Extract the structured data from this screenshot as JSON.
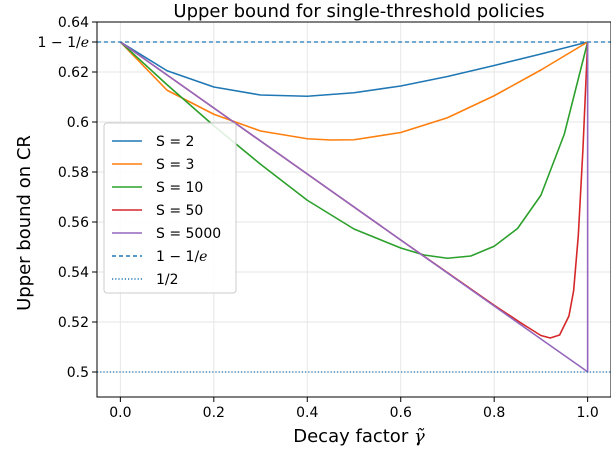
{
  "chart_data": {
    "type": "line",
    "title": "Upper bound for single-threshold policies",
    "xlabel": "Decay factor",
    "xlabel_symbol": "γ̃",
    "ylabel": "Upper bound on CR",
    "xlim": [
      -0.05,
      1.05
    ],
    "ylim": [
      0.49,
      0.64
    ],
    "x_ticks": [
      0.0,
      0.2,
      0.4,
      0.6,
      0.8,
      1.0
    ],
    "x_tick_labels": [
      "0.0",
      "0.2",
      "0.4",
      "0.6",
      "0.8",
      "1.0"
    ],
    "y_ticks": [
      0.5,
      0.52,
      0.54,
      0.56,
      0.58,
      0.6,
      0.62,
      0.632,
      0.64
    ],
    "y_tick_labels": [
      "0.5",
      "0.52",
      "0.54",
      "0.56",
      "0.58",
      "0.6",
      "0.62",
      "1 − 1/e",
      "0.64"
    ],
    "grid": true,
    "legend_location": "center-left",
    "series": [
      {
        "name": "S = 2",
        "color": "#1f77b4",
        "style": "solid",
        "x": [
          0.0,
          0.1,
          0.2,
          0.3,
          0.4,
          0.5,
          0.6,
          0.7,
          0.8,
          0.9,
          1.0
        ],
        "y": [
          0.632,
          0.6205,
          0.614,
          0.6108,
          0.6103,
          0.6117,
          0.6144,
          0.6182,
          0.6226,
          0.6272,
          0.632
        ]
      },
      {
        "name": "S = 3",
        "color": "#ff7f0e",
        "style": "solid",
        "x": [
          0.0,
          0.1,
          0.2,
          0.3,
          0.4,
          0.45,
          0.5,
          0.6,
          0.7,
          0.8,
          0.9,
          1.0
        ],
        "y": [
          0.632,
          0.6127,
          0.6031,
          0.5964,
          0.5933,
          0.5928,
          0.5929,
          0.5958,
          0.6017,
          0.6105,
          0.6208,
          0.632
        ]
      },
      {
        "name": "S = 10",
        "color": "#2ca02c",
        "style": "solid",
        "x": [
          0.0,
          0.1,
          0.2,
          0.3,
          0.4,
          0.5,
          0.6,
          0.65,
          0.7,
          0.75,
          0.8,
          0.85,
          0.9,
          0.95,
          1.0
        ],
        "y": [
          0.632,
          0.6149,
          0.5985,
          0.5831,
          0.5687,
          0.5572,
          0.5496,
          0.5468,
          0.5455,
          0.5464,
          0.5503,
          0.5574,
          0.5707,
          0.5951,
          0.632
        ]
      },
      {
        "name": "S = 50",
        "color": "#d62728",
        "style": "solid",
        "x": [
          0.0,
          0.2,
          0.4,
          0.6,
          0.8,
          0.86,
          0.9,
          0.92,
          0.94,
          0.96,
          0.97,
          0.98,
          0.99,
          1.0
        ],
        "y": [
          0.632,
          0.6056,
          0.5792,
          0.5528,
          0.5267,
          0.5193,
          0.5146,
          0.5136,
          0.5148,
          0.5224,
          0.5325,
          0.5545,
          0.5893,
          0.632
        ]
      },
      {
        "name": "S = 5000",
        "color": "#9467bd",
        "style": "solid",
        "x": [
          0.0,
          0.2,
          0.4,
          0.6,
          0.8,
          0.9,
          0.99,
          0.998,
          1.0,
          1.0
        ],
        "y": [
          0.632,
          0.6056,
          0.5792,
          0.5528,
          0.5264,
          0.5132,
          0.5014,
          0.5003,
          0.5,
          0.632
        ]
      },
      {
        "name": "1 − 1/e",
        "color": "#1f77b4",
        "style": "dashed",
        "hline": 0.632
      },
      {
        "name": "1/2",
        "color": "#1f77b4",
        "style": "dotted",
        "hline": 0.5
      }
    ]
  }
}
